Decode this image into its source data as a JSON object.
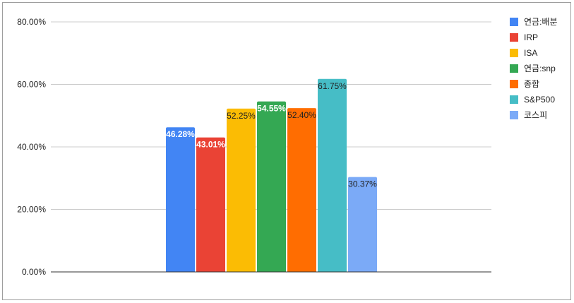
{
  "chart_data": {
    "type": "bar",
    "title": "",
    "xlabel": "",
    "ylabel": "",
    "categories": [
      ""
    ],
    "ylim": [
      0,
      80
    ],
    "y_ticks": [
      {
        "value": 0,
        "label": "0.00%"
      },
      {
        "value": 20,
        "label": "20.00%"
      },
      {
        "value": 40,
        "label": "40.00%"
      },
      {
        "value": 60,
        "label": "60.00%"
      },
      {
        "value": 80,
        "label": "80.00%"
      }
    ],
    "grid": true,
    "legend_position": "right",
    "series": [
      {
        "name": "연금:배분",
        "value": 46.28,
        "label": "46.28%",
        "color": "#4285f4",
        "label_color": "#ffffff",
        "label_bold": true
      },
      {
        "name": "IRP",
        "value": 43.01,
        "label": "43.01%",
        "color": "#ea4335",
        "label_color": "#ffffff",
        "label_bold": true
      },
      {
        "name": "ISA",
        "value": 52.25,
        "label": "52.25%",
        "color": "#fbbc04",
        "label_color": "#222222",
        "label_bold": false
      },
      {
        "name": "연금:snp",
        "value": 54.55,
        "label": "54.55%",
        "color": "#34a853",
        "label_color": "#ffffff",
        "label_bold": true
      },
      {
        "name": "종합",
        "value": 52.4,
        "label": "52.40%",
        "color": "#ff6d01",
        "label_color": "#222222",
        "label_bold": false
      },
      {
        "name": "S&P500",
        "value": 61.75,
        "label": "61.75%",
        "color": "#46bdc6",
        "label_color": "#222222",
        "label_bold": false
      },
      {
        "name": "코스피",
        "value": 30.37,
        "label": "30.37%",
        "color": "#7baaf7",
        "label_color": "#222222",
        "label_bold": false
      }
    ]
  }
}
